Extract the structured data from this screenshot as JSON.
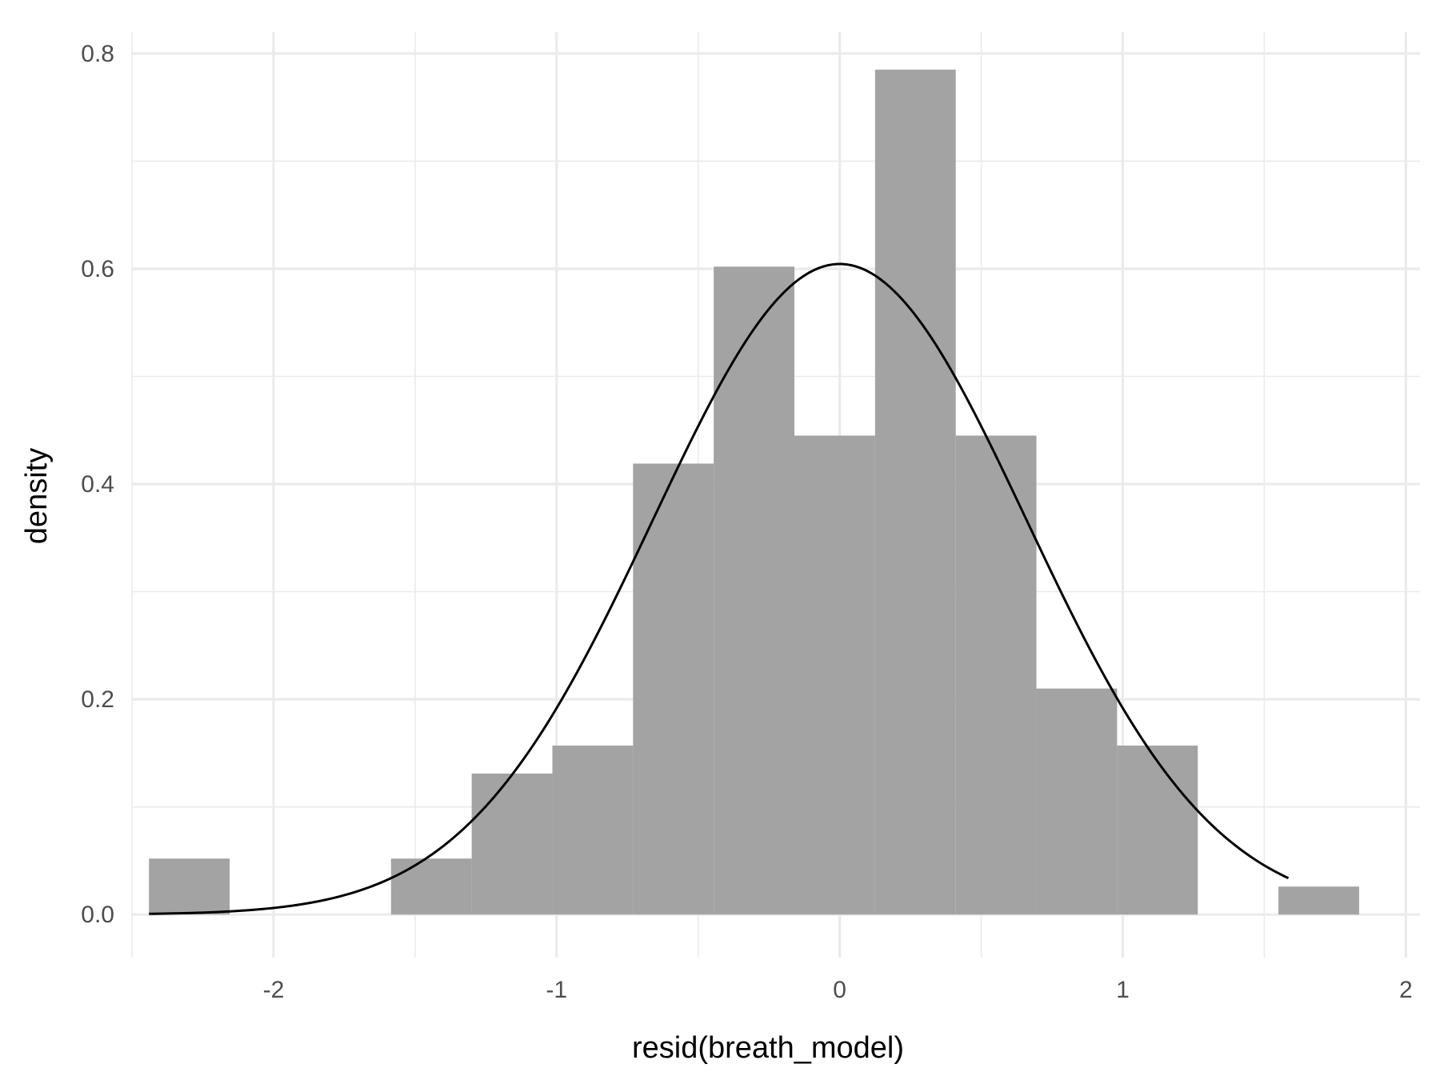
{
  "chart_data": {
    "type": "bar",
    "subtype": "histogram-with-density-curve",
    "xlabel": "resid(breath_model)",
    "ylabel": "density",
    "xlim": [
      -2.5,
      2.05
    ],
    "ylim": [
      -0.04,
      0.82
    ],
    "x_ticks": [
      -2,
      -1,
      0,
      1,
      2
    ],
    "x_tick_labels": [
      "-2",
      "-1",
      "0",
      "1",
      "2"
    ],
    "x_minor_ticks": [
      -2.5,
      -1.5,
      -0.5,
      0.5,
      1.5
    ],
    "y_ticks": [
      0.0,
      0.2,
      0.4,
      0.6,
      0.8
    ],
    "y_tick_labels": [
      "0.0",
      "0.2",
      "0.4",
      "0.6",
      "0.8"
    ],
    "y_minor_ticks": [
      0.1,
      0.3,
      0.5,
      0.7
    ],
    "grid": true,
    "bins": [
      {
        "x0": -2.44,
        "x1": -2.155,
        "density": 0.052
      },
      {
        "x0": -2.155,
        "x1": -1.87,
        "density": 0.0
      },
      {
        "x0": -1.87,
        "x1": -1.585,
        "density": 0.0
      },
      {
        "x0": -1.585,
        "x1": -1.3,
        "density": 0.052
      },
      {
        "x0": -1.3,
        "x1": -1.015,
        "density": 0.131
      },
      {
        "x0": -1.015,
        "x1": -0.73,
        "density": 0.157
      },
      {
        "x0": -0.73,
        "x1": -0.445,
        "density": 0.419
      },
      {
        "x0": -0.445,
        "x1": -0.16,
        "density": 0.602
      },
      {
        "x0": -0.16,
        "x1": 0.125,
        "density": 0.445
      },
      {
        "x0": 0.125,
        "x1": 0.41,
        "density": 0.785
      },
      {
        "x0": 0.41,
        "x1": 0.695,
        "density": 0.445
      },
      {
        "x0": 0.695,
        "x1": 0.98,
        "density": 0.21
      },
      {
        "x0": 0.98,
        "x1": 1.265,
        "density": 0.157
      },
      {
        "x0": 1.265,
        "x1": 1.55,
        "density": 0.0
      },
      {
        "x0": 1.55,
        "x1": 1.835,
        "density": 0.026
      }
    ],
    "density_curve": {
      "distribution": "normal",
      "mean": 0.0,
      "sd": 0.66,
      "x_range": [
        -2.44,
        1.585
      ]
    },
    "colors": {
      "bar_fill": "#a3a3a3",
      "curve": "#000000",
      "grid_major": "#ebebeb",
      "grid_minor": "#ebebeb"
    }
  }
}
